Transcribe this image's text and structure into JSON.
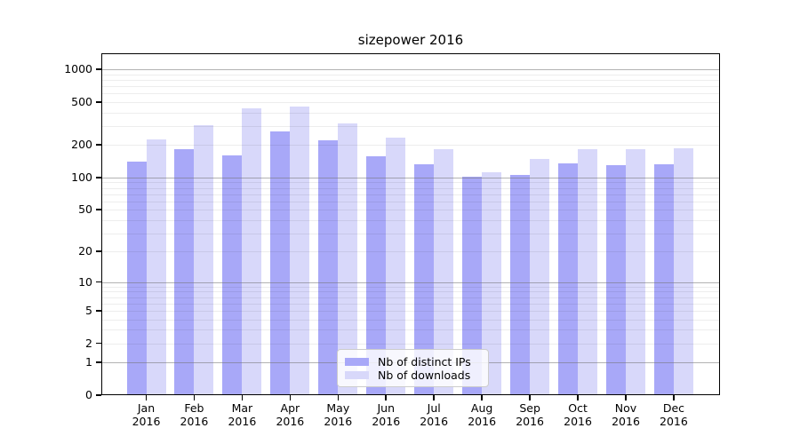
{
  "chart_data": {
    "type": "bar",
    "title": "sizepower 2016",
    "categories": [
      "Jan",
      "Feb",
      "Mar",
      "Apr",
      "May",
      "Jun",
      "Jul",
      "Aug",
      "Sep",
      "Oct",
      "Nov",
      "Dec"
    ],
    "year_label": "2016",
    "series": [
      {
        "name": "Nb of distinct IPs",
        "color": "#a8a8f8",
        "values": [
          140,
          183,
          161,
          265,
          221,
          157,
          132,
          101,
          106,
          134,
          130,
          132
        ]
      },
      {
        "name": "Nb of downloads",
        "color": "#d8d8fa",
        "values": [
          226,
          305,
          434,
          450,
          316,
          234,
          183,
          112,
          148,
          184,
          183,
          186
        ]
      }
    ],
    "yscale": "log(1+v)",
    "ylim": [
      0,
      1000
    ],
    "y_ticks": [
      0,
      1,
      2,
      5,
      10,
      20,
      50,
      100,
      200,
      500,
      1000
    ],
    "major_gridlines": [
      1,
      10,
      100,
      1000
    ],
    "grid": true,
    "legend_position": "lower center",
    "xlabel": "",
    "ylabel": ""
  }
}
